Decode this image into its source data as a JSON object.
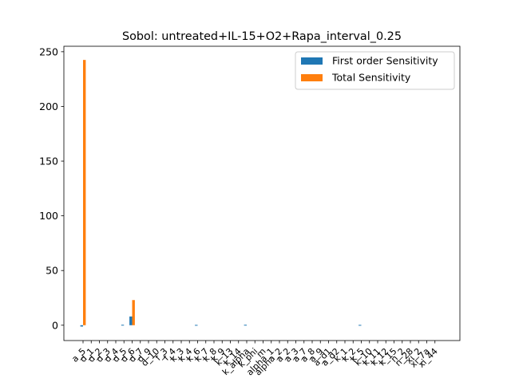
{
  "chart_data": {
    "type": "bar",
    "title": "Sobol: untreated+IL-15+O2+Rapa_interval_0.25",
    "xlabel": "",
    "ylabel": "",
    "ylim": [
      -14,
      255
    ],
    "yticks": [
      0,
      50,
      100,
      150,
      200,
      250
    ],
    "categories": [
      "a_5",
      "d_1",
      "d_2",
      "d_3",
      "d_4",
      "d_5",
      "d_6",
      "d_7",
      "d_9",
      "d_10",
      "f_3",
      "f_4",
      "k_3",
      "k_4",
      "k_6",
      "k_7",
      "k_8",
      "k_9",
      "k_13",
      "k_14",
      "k_alpha",
      "k_phi",
      "m",
      "alpha_1",
      "alpha_2",
      "a_2",
      "a_3",
      "a_7",
      "a_8",
      "a_9",
      "a_d1",
      "a_d2",
      "k_1",
      "k_2",
      "k_5",
      "k_10",
      "k_11",
      "k_12",
      "k_15",
      "n_2",
      "n_28",
      "xi_2",
      "xi_7a",
      "xi_44"
    ],
    "series": [
      {
        "name": "First order Sensitivity",
        "color": "#1f77b4",
        "values": [
          -1.2,
          0,
          0,
          0,
          0,
          0.4,
          8,
          0,
          0,
          0,
          0,
          0,
          0,
          0,
          0.3,
          0,
          0,
          0,
          0,
          0,
          0.4,
          0,
          0,
          0,
          0,
          0,
          0,
          0,
          0,
          0,
          0,
          0,
          0,
          0,
          0.3,
          0,
          0,
          0,
          0,
          0,
          0,
          0,
          0,
          0
        ]
      },
      {
        "name": "Total Sensitivity",
        "color": "#ff7f0e",
        "values": [
          242.5,
          0,
          0,
          0,
          0,
          0,
          23,
          0,
          0,
          0,
          0,
          0,
          0,
          0,
          0,
          0,
          0,
          0,
          0,
          0,
          0,
          0,
          0,
          0,
          0,
          0,
          0,
          0,
          0,
          0,
          0,
          0,
          0,
          0,
          0,
          0,
          0,
          0,
          0,
          0,
          0,
          0,
          0,
          0
        ]
      }
    ],
    "legend": "top-right",
    "grid": false
  }
}
